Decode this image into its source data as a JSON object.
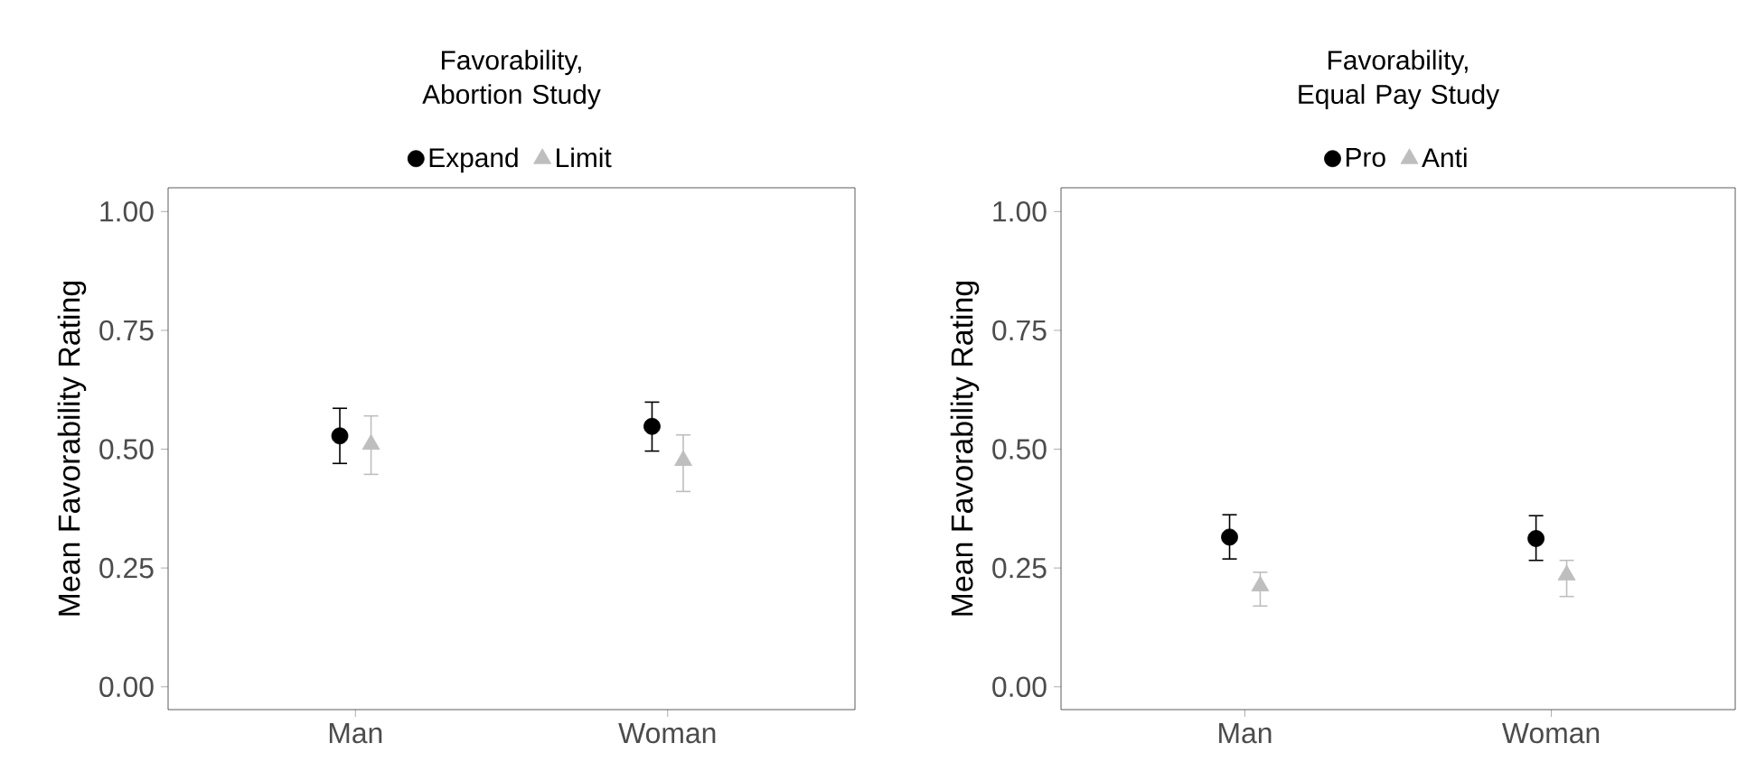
{
  "chart_data": [
    {
      "type": "scatter",
      "title": "Favorability, Abortion Study",
      "ylabel": "Mean Favorability Rating",
      "categories": [
        "Man",
        "Woman"
      ],
      "series": [
        {
          "name": "Expand",
          "color": "#000000",
          "marker": "circle",
          "values": [
            0.528,
            0.548
          ],
          "errors": [
            [
              0.47,
              0.586
            ],
            [
              0.496,
              0.599
            ]
          ]
        },
        {
          "name": "Limit",
          "color": "#bebebe",
          "marker": "triangle",
          "values": [
            0.51,
            0.476
          ],
          "errors": [
            [
              0.447,
              0.57
            ],
            [
              0.411,
              0.53
            ]
          ]
        }
      ],
      "ylim": [
        -0.048,
        1.05
      ],
      "yticks": [
        {
          "value": 0,
          "label": "0.00"
        },
        {
          "value": 0.25,
          "label": "0.25"
        },
        {
          "value": 0.5,
          "label": "0.50"
        },
        {
          "value": 0.75,
          "label": "0.75"
        },
        {
          "value": 1,
          "label": "1.00"
        }
      ],
      "grid": false,
      "legend": "top"
    },
    {
      "type": "scatter",
      "title": "Favorability, Equal Pay Study",
      "ylabel": "Mean Favorability Rating",
      "categories": [
        "Man",
        "Woman"
      ],
      "series": [
        {
          "name": "Pro",
          "color": "#000000",
          "marker": "circle",
          "values": [
            0.315,
            0.312
          ],
          "errors": [
            [
              0.269,
              0.362
            ],
            [
              0.266,
              0.36
            ]
          ]
        },
        {
          "name": "Anti",
          "color": "#bebebe",
          "marker": "triangle",
          "values": [
            0.212,
            0.235
          ],
          "errors": [
            [
              0.17,
              0.241
            ],
            [
              0.19,
              0.266
            ]
          ]
        }
      ],
      "ylim": [
        -0.048,
        1.05
      ],
      "yticks": [
        {
          "value": 0,
          "label": "0.00"
        },
        {
          "value": 0.25,
          "label": "0.25"
        },
        {
          "value": 0.5,
          "label": "0.50"
        },
        {
          "value": 0.75,
          "label": "0.75"
        },
        {
          "value": 1,
          "label": "1.00"
        }
      ],
      "grid": false,
      "legend": "top"
    }
  ]
}
